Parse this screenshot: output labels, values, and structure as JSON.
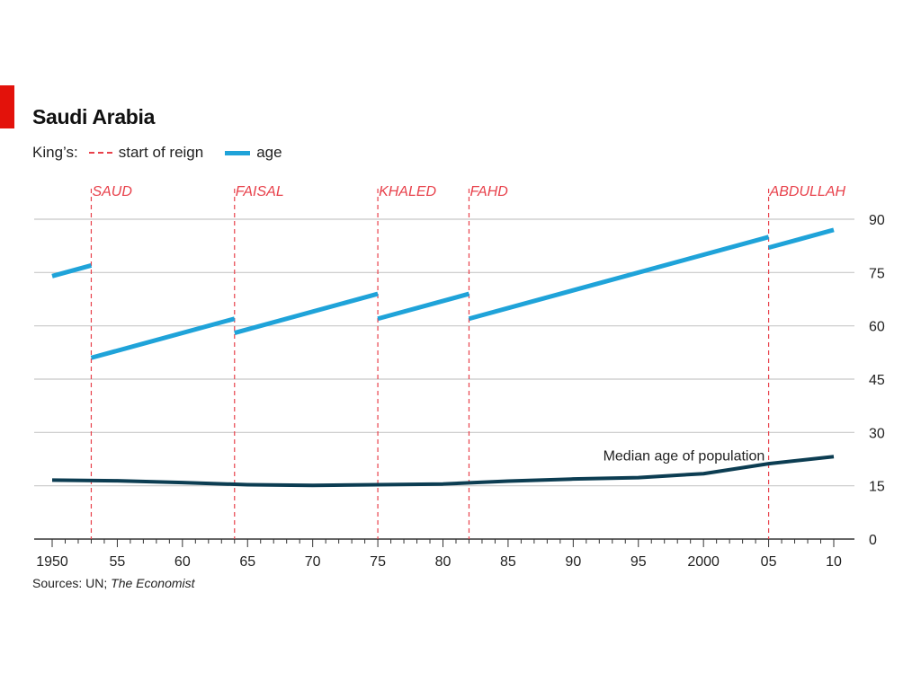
{
  "header": {
    "title": "Saudi Arabia",
    "legend_lead": "King’s:",
    "legend_reign": "start of reign",
    "legend_age": "age"
  },
  "source": {
    "prefix": "Sources: UN; ",
    "publication": "The Economist"
  },
  "colors": {
    "age_line": "#1fa3d9",
    "median_line": "#0c3d52",
    "reign_marker": "#e8414b",
    "gridline": "#c8c8c8",
    "accent": "#e3120b"
  },
  "chart_data": {
    "type": "line",
    "title": "Saudi Arabia",
    "xlim": [
      1950,
      2010
    ],
    "ylim": [
      0,
      90
    ],
    "y_ticks": [
      0,
      15,
      30,
      45,
      60,
      75,
      90
    ],
    "y_axis_side": "right",
    "x_ticks": [
      {
        "value": 1950,
        "label": "1950"
      },
      {
        "value": 1955,
        "label": "55"
      },
      {
        "value": 1960,
        "label": "60"
      },
      {
        "value": 1965,
        "label": "65"
      },
      {
        "value": 1970,
        "label": "70"
      },
      {
        "value": 1975,
        "label": "75"
      },
      {
        "value": 1980,
        "label": "80"
      },
      {
        "value": 1985,
        "label": "85"
      },
      {
        "value": 1990,
        "label": "90"
      },
      {
        "value": 1995,
        "label": "95"
      },
      {
        "value": 2000,
        "label": "2000"
      },
      {
        "value": 2005,
        "label": "05"
      },
      {
        "value": 2010,
        "label": "10"
      }
    ],
    "grid": true,
    "reigns": [
      {
        "king": "SAUD",
        "start": 1953
      },
      {
        "king": "FAISAL",
        "start": 1964
      },
      {
        "king": "KHALED",
        "start": 1975
      },
      {
        "king": "FAHD",
        "start": 1982
      },
      {
        "king": "ABDULLAH",
        "start": 2005
      }
    ],
    "king_age_segments": [
      {
        "x": [
          1950,
          1953
        ],
        "y": [
          74,
          77
        ]
      },
      {
        "x": [
          1953,
          1964
        ],
        "y": [
          51,
          62
        ]
      },
      {
        "x": [
          1964,
          1975
        ],
        "y": [
          58,
          69
        ]
      },
      {
        "x": [
          1975,
          1982
        ],
        "y": [
          62,
          69
        ]
      },
      {
        "x": [
          1982,
          2005
        ],
        "y": [
          62,
          85
        ]
      },
      {
        "x": [
          2005,
          2010
        ],
        "y": [
          82,
          87
        ]
      }
    ],
    "median_age": {
      "label": "Median age of population",
      "x": [
        1950,
        1955,
        1960,
        1965,
        1970,
        1975,
        1980,
        1985,
        1990,
        1995,
        2000,
        2005,
        2010
      ],
      "y": [
        16.6,
        16.4,
        15.9,
        15.3,
        15.1,
        15.3,
        15.5,
        16.3,
        16.9,
        17.3,
        18.4,
        21.2,
        23.2
      ]
    }
  }
}
